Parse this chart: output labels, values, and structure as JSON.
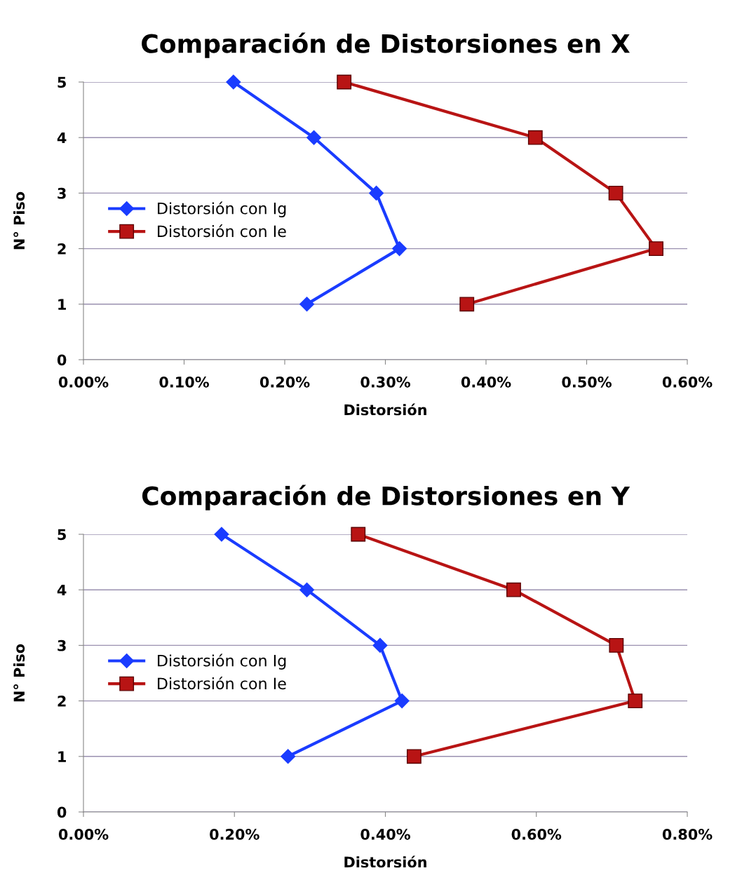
{
  "chart_data": [
    {
      "type": "line",
      "title": "Comparación de Distorsiones en X",
      "xlabel": "Distorsión",
      "ylabel": "N° Piso",
      "xlim": [
        0,
        0.6
      ],
      "xticks": [
        {
          "value": 0,
          "label": "0.00%"
        },
        {
          "value": 0.1,
          "label": "0.10%"
        },
        {
          "value": 0.2,
          "label": "0.20%"
        },
        {
          "value": 0.3,
          "label": "0.30%"
        },
        {
          "value": 0.4,
          "label": "0.40%"
        },
        {
          "value": 0.5,
          "label": "0.50%"
        },
        {
          "value": 0.6,
          "label": "0.60%"
        }
      ],
      "ylim": [
        0,
        5
      ],
      "yticks": [
        0,
        1,
        2,
        3,
        4,
        5
      ],
      "grid": "y",
      "legend": "left",
      "series": [
        {
          "name": "Distorsión con Ig",
          "color": "#1a3cff",
          "marker": "diamond",
          "x": [
            0.149,
            0.229,
            0.291,
            0.314,
            0.222
          ],
          "values": [
            5,
            4,
            3,
            2,
            1
          ]
        },
        {
          "name": "Distorsión con Ie",
          "color": "#b81414",
          "marker": "square",
          "x": [
            0.259,
            0.449,
            0.529,
            0.569,
            0.381
          ],
          "values": [
            5,
            4,
            3,
            2,
            1
          ]
        }
      ]
    },
    {
      "type": "line",
      "title": "Comparación de Distorsiones en Y",
      "xlabel": "Distorsión",
      "ylabel": "N° Piso",
      "xlim": [
        0,
        0.8
      ],
      "xticks": [
        {
          "value": 0,
          "label": "0.00%"
        },
        {
          "value": 0.2,
          "label": "0.20%"
        },
        {
          "value": 0.4,
          "label": "0.40%"
        },
        {
          "value": 0.6,
          "label": "0.60%"
        },
        {
          "value": 0.8,
          "label": "0.80%"
        }
      ],
      "ylim": [
        0,
        5
      ],
      "yticks": [
        0,
        1,
        2,
        3,
        4,
        5
      ],
      "grid": "y",
      "legend": "left",
      "series": [
        {
          "name": "Distorsión con Ig",
          "color": "#1a3cff",
          "marker": "diamond",
          "x": [
            0.183,
            0.296,
            0.393,
            0.422,
            0.271
          ],
          "values": [
            5,
            4,
            3,
            2,
            1
          ]
        },
        {
          "name": "Distorsión con Ie",
          "color": "#b81414",
          "marker": "square",
          "x": [
            0.364,
            0.57,
            0.706,
            0.731,
            0.438
          ],
          "values": [
            5,
            4,
            3,
            2,
            1
          ]
        }
      ]
    }
  ]
}
